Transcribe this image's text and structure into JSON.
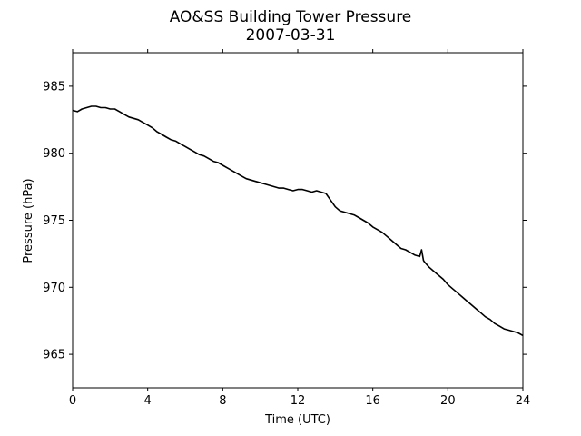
{
  "chart_data": {
    "type": "line",
    "title": "AO&SS Building Tower Pressure",
    "subtitle": "2007-03-31",
    "xlabel": "Time (UTC)",
    "ylabel": "Pressure (hPa)",
    "xlim": [
      0,
      24
    ],
    "ylim": [
      962.5,
      987.5
    ],
    "xticks": [
      0,
      4,
      8,
      12,
      16,
      20,
      24
    ],
    "yticks": [
      965,
      970,
      975,
      980,
      985
    ],
    "grid": false,
    "line_color": "#000000",
    "series": [
      {
        "x": [
          0.0,
          0.25,
          0.5,
          0.75,
          1.0,
          1.25,
          1.5,
          1.75,
          2.0,
          2.25,
          2.5,
          2.75,
          3.0,
          3.25,
          3.5,
          3.75,
          4.0,
          4.25,
          4.5,
          4.75,
          5.0,
          5.25,
          5.5,
          5.75,
          6.0,
          6.25,
          6.5,
          6.75,
          7.0,
          7.25,
          7.5,
          7.75,
          8.0,
          8.25,
          8.5,
          8.75,
          9.0,
          9.25,
          9.5,
          9.75,
          10.0,
          10.25,
          10.5,
          10.75,
          11.0,
          11.25,
          11.5,
          11.75,
          12.0,
          12.25,
          12.5,
          12.75,
          13.0,
          13.25,
          13.5,
          13.75,
          14.0,
          14.25,
          14.5,
          14.75,
          15.0,
          15.25,
          15.5,
          15.75,
          16.0,
          16.25,
          16.5,
          16.75,
          17.0,
          17.25,
          17.5,
          17.75,
          18.0,
          18.25,
          18.5,
          18.6,
          18.7,
          18.75,
          19.0,
          19.25,
          19.5,
          19.75,
          20.0,
          20.25,
          20.5,
          20.75,
          21.0,
          21.25,
          21.5,
          21.75,
          22.0,
          22.25,
          22.5,
          22.75,
          23.0,
          23.25,
          23.5,
          23.75,
          24.0
        ],
        "y": [
          983.2,
          983.1,
          983.3,
          983.4,
          983.5,
          983.5,
          983.4,
          983.4,
          983.3,
          983.3,
          983.1,
          982.9,
          982.7,
          982.6,
          982.5,
          982.3,
          982.1,
          981.9,
          981.6,
          981.4,
          981.2,
          981.0,
          980.9,
          980.7,
          980.5,
          980.3,
          980.1,
          979.9,
          979.8,
          979.6,
          979.4,
          979.3,
          979.1,
          978.9,
          978.7,
          978.5,
          978.3,
          978.1,
          978.0,
          977.9,
          977.8,
          977.7,
          977.6,
          977.5,
          977.4,
          977.4,
          977.3,
          977.2,
          977.3,
          977.3,
          977.2,
          977.1,
          977.2,
          977.1,
          977.0,
          976.5,
          976.0,
          975.7,
          975.6,
          975.5,
          975.4,
          975.2,
          975.0,
          974.8,
          974.5,
          974.3,
          974.1,
          973.8,
          973.5,
          973.2,
          972.9,
          972.8,
          972.6,
          972.4,
          972.3,
          972.8,
          972.0,
          971.9,
          971.5,
          971.2,
          970.9,
          970.6,
          970.2,
          969.9,
          969.6,
          969.3,
          969.0,
          968.7,
          968.4,
          968.1,
          967.8,
          967.6,
          967.3,
          967.1,
          966.9,
          966.8,
          966.7,
          966.6,
          966.4
        ]
      }
    ]
  }
}
